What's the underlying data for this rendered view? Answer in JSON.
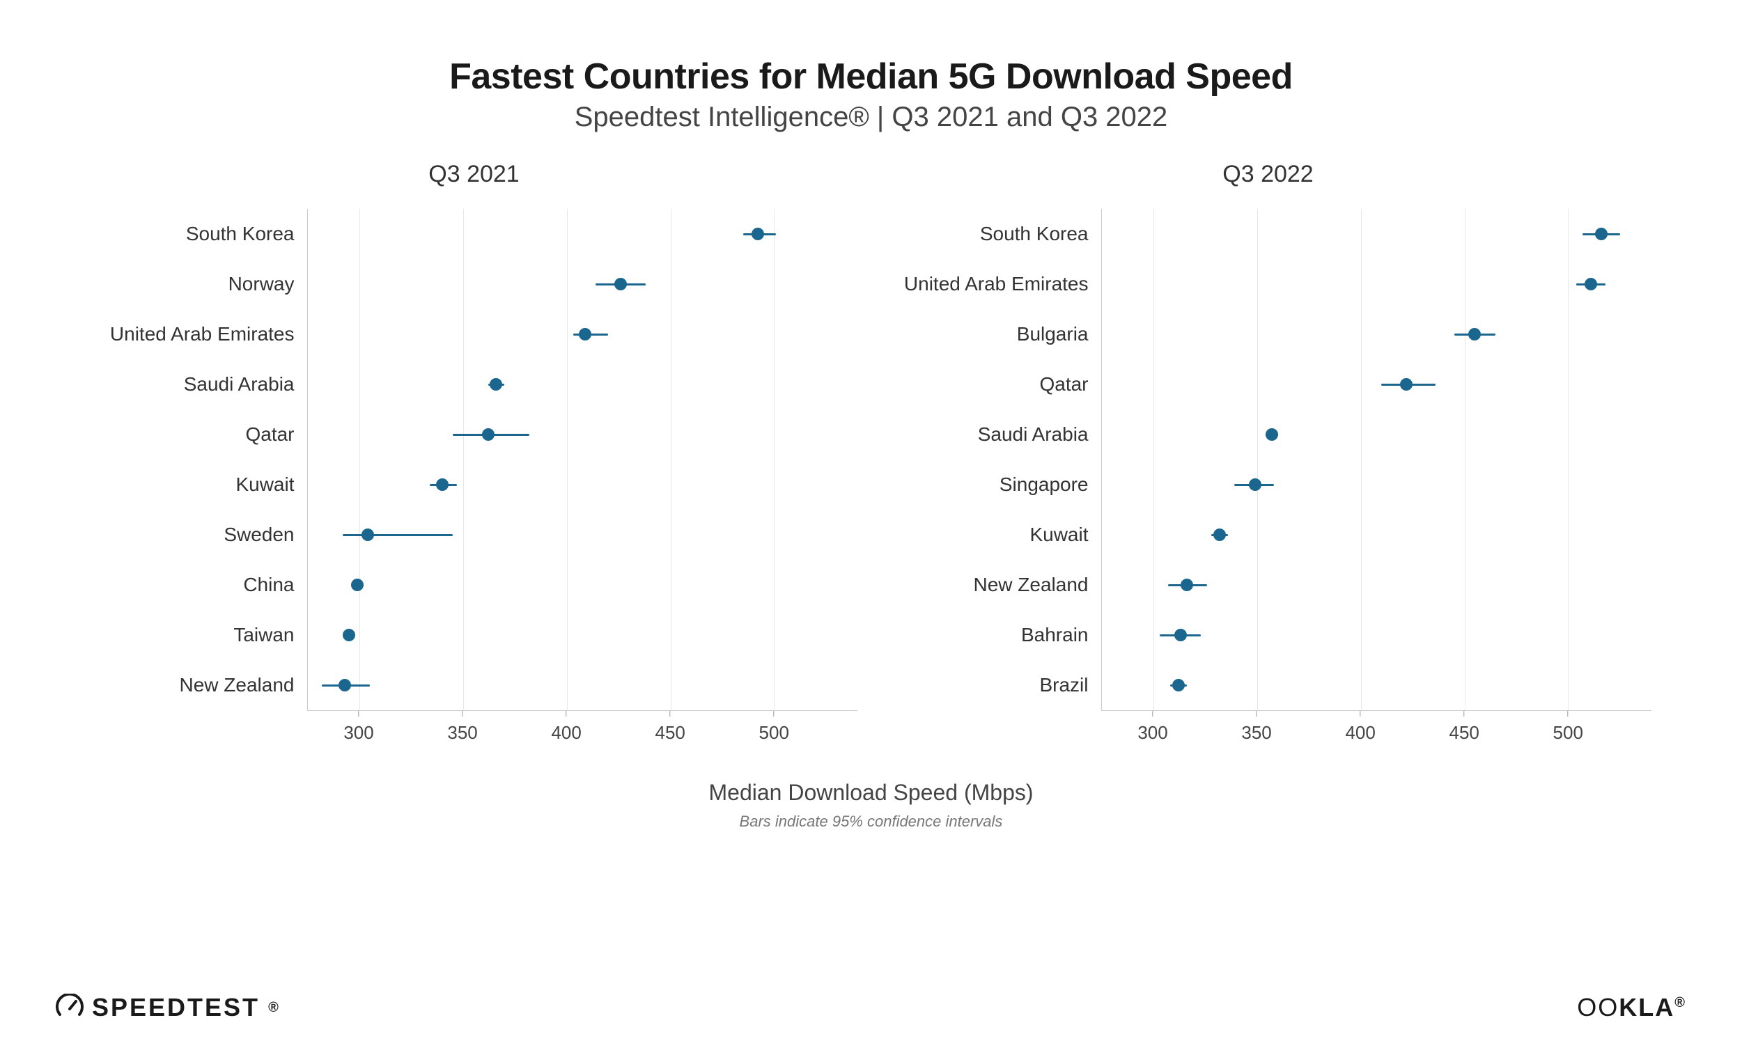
{
  "title": "Fastest Countries for Median 5G Download Speed",
  "subtitle": "Speedtest Intelligence® | Q3 2021 and Q3 2022",
  "x_axis_label": "Median Download Speed (Mbps)",
  "footnote": "Bars indicate 95% confidence intervals",
  "brand_left": "SPEEDTEST",
  "brand_right": "OOKLA",
  "chart_style": {
    "type": "dot-whisker",
    "dot_color": "#1b668f",
    "whisker_color": "#1b668f",
    "whisker_width": 3,
    "dot_size": 18,
    "grid_color": "#e8e8e8",
    "axis_color": "#cccccc",
    "title_fontsize": 52,
    "subtitle_fontsize": 40,
    "panel_title_fontsize": 34,
    "label_fontsize": 28,
    "tick_fontsize": 26,
    "x_label_fontsize": 32,
    "footnote_fontsize": 22,
    "background_color": "#ffffff"
  },
  "panels": [
    {
      "title": "Q3 2021",
      "xlim": [
        275,
        540
      ],
      "xticks": [
        300,
        350,
        400,
        450,
        500
      ],
      "data": [
        {
          "label": "South Korea",
          "value": 492,
          "ci_low": 485,
          "ci_high": 501
        },
        {
          "label": "Norway",
          "value": 426,
          "ci_low": 414,
          "ci_high": 438
        },
        {
          "label": "United Arab Emirates",
          "value": 409,
          "ci_low": 403,
          "ci_high": 420
        },
        {
          "label": "Saudi Arabia",
          "value": 366,
          "ci_low": 362,
          "ci_high": 370
        },
        {
          "label": "Qatar",
          "value": 362,
          "ci_low": 345,
          "ci_high": 382
        },
        {
          "label": "Kuwait",
          "value": 340,
          "ci_low": 334,
          "ci_high": 347
        },
        {
          "label": "Sweden",
          "value": 304,
          "ci_low": 292,
          "ci_high": 345
        },
        {
          "label": "China",
          "value": 299,
          "ci_low": 296,
          "ci_high": 302
        },
        {
          "label": "Taiwan",
          "value": 295,
          "ci_low": 292,
          "ci_high": 298
        },
        {
          "label": "New Zealand",
          "value": 293,
          "ci_low": 282,
          "ci_high": 305
        }
      ]
    },
    {
      "title": "Q3 2022",
      "xlim": [
        275,
        540
      ],
      "xticks": [
        300,
        350,
        400,
        450,
        500
      ],
      "data": [
        {
          "label": "South Korea",
          "value": 516,
          "ci_low": 507,
          "ci_high": 525
        },
        {
          "label": "United Arab Emirates",
          "value": 511,
          "ci_low": 504,
          "ci_high": 518
        },
        {
          "label": "Bulgaria",
          "value": 455,
          "ci_low": 445,
          "ci_high": 465
        },
        {
          "label": "Qatar",
          "value": 422,
          "ci_low": 410,
          "ci_high": 436
        },
        {
          "label": "Saudi Arabia",
          "value": 357,
          "ci_low": 354,
          "ci_high": 360
        },
        {
          "label": "Singapore",
          "value": 349,
          "ci_low": 339,
          "ci_high": 358
        },
        {
          "label": "Kuwait",
          "value": 332,
          "ci_low": 328,
          "ci_high": 336
        },
        {
          "label": "New Zealand",
          "value": 316,
          "ci_low": 307,
          "ci_high": 326
        },
        {
          "label": "Bahrain",
          "value": 313,
          "ci_low": 303,
          "ci_high": 323
        },
        {
          "label": "Brazil",
          "value": 312,
          "ci_low": 308,
          "ci_high": 316
        }
      ]
    }
  ]
}
